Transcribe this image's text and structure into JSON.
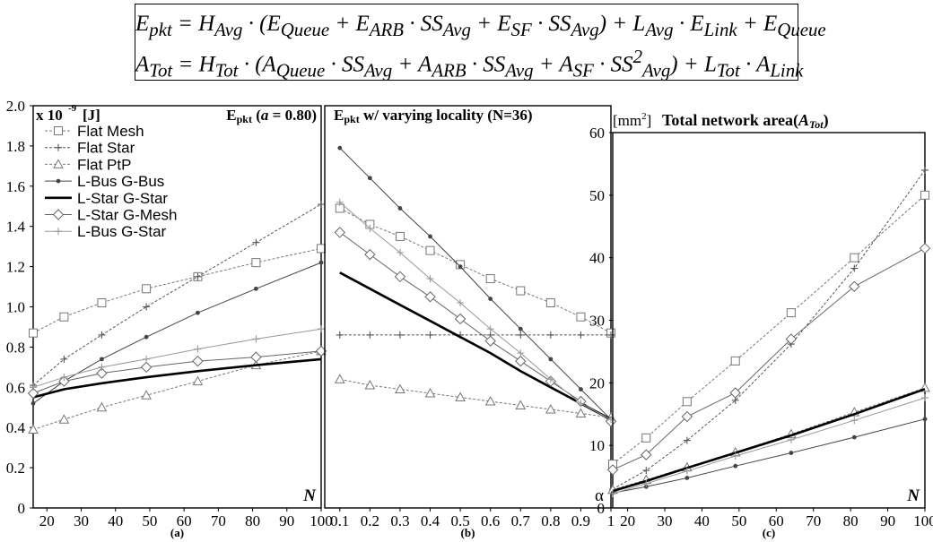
{
  "formulas": [
    "E_pkt = H_Avg · (E_Queue + E_ARB · SS_Avg + E_SF · SS_Avg) + L_Avg · E_Link + E_Queue",
    "A_Tot = H_Tot · (A_Queue · SS_Avg + A_ARB · SS_Avg + A_SF · SS²_Avg) + L_Tot · A_Link"
  ],
  "legend": [
    "Flat Mesh",
    "Flat Star",
    "Flat PtP",
    "L-Bus G-Bus",
    "L-Star G-Star",
    "L-Star G-Mesh",
    "L-Bus G-Star"
  ],
  "chart_data": [
    {
      "type": "line",
      "panel": "(a)",
      "title": "E_pkt (a = 0.80)",
      "ylabel": "x 10^-9 [J]",
      "xlabel": "N",
      "xlim": [
        16,
        100
      ],
      "ylim": [
        0,
        2.0
      ],
      "xticks": [
        20,
        30,
        40,
        50,
        60,
        70,
        80,
        90,
        100
      ],
      "yticks": [
        0,
        0.2,
        0.4,
        0.6,
        0.8,
        1.0,
        1.2,
        1.4,
        1.6,
        1.8,
        2.0
      ],
      "x": [
        16,
        25,
        36,
        49,
        64,
        81,
        100
      ],
      "legend_position": "top-left",
      "series": [
        {
          "name": "Flat Mesh",
          "values": [
            0.87,
            0.95,
            1.02,
            1.09,
            1.15,
            1.22,
            1.29
          ]
        },
        {
          "name": "Flat Star",
          "values": [
            0.61,
            0.74,
            0.86,
            1.0,
            1.15,
            1.32,
            1.51
          ]
        },
        {
          "name": "Flat PtP",
          "values": [
            0.39,
            0.44,
            0.5,
            0.56,
            0.63,
            0.71,
            0.78
          ]
        },
        {
          "name": "L-Bus G-Bus",
          "values": [
            0.52,
            0.63,
            0.74,
            0.85,
            0.97,
            1.09,
            1.22
          ]
        },
        {
          "name": "L-Star G-Star",
          "values": [
            0.55,
            0.59,
            0.62,
            0.65,
            0.68,
            0.71,
            0.74
          ]
        },
        {
          "name": "L-Star G-Mesh",
          "values": [
            0.57,
            0.63,
            0.67,
            0.7,
            0.73,
            0.75,
            0.78
          ]
        },
        {
          "name": "L-Bus G-Star",
          "values": [
            0.6,
            0.65,
            0.7,
            0.74,
            0.79,
            0.84,
            0.89
          ]
        }
      ]
    },
    {
      "type": "line",
      "panel": "(b)",
      "title": "E_pkt w/ varying locality (N=36)",
      "xlabel": "α",
      "xlim": [
        0.05,
        1.0
      ],
      "ylim": [
        0,
        2.0
      ],
      "xticks": [
        0.1,
        0.2,
        0.3,
        0.4,
        0.5,
        0.6,
        0.7,
        0.8,
        0.9,
        1
      ],
      "x": [
        0.1,
        0.2,
        0.3,
        0.4,
        0.5,
        0.6,
        0.7,
        0.8,
        0.9,
        1.0
      ],
      "series": [
        {
          "name": "Flat Mesh",
          "values": [
            1.49,
            1.41,
            1.35,
            1.28,
            1.21,
            1.14,
            1.08,
            1.02,
            0.95,
            0.87
          ]
        },
        {
          "name": "Flat Star",
          "values": [
            0.86,
            0.86,
            0.86,
            0.86,
            0.86,
            0.86,
            0.86,
            0.86,
            0.86,
            0.86
          ]
        },
        {
          "name": "Flat PtP",
          "values": [
            0.64,
            0.61,
            0.59,
            0.57,
            0.55,
            0.53,
            0.51,
            0.49,
            0.47,
            0.45
          ]
        },
        {
          "name": "L-Bus G-Bus",
          "values": [
            1.79,
            1.64,
            1.49,
            1.35,
            1.2,
            1.04,
            0.89,
            0.74,
            0.59,
            0.44
          ]
        },
        {
          "name": "L-Star G-Star",
          "values": [
            1.17,
            1.09,
            1.01,
            0.93,
            0.85,
            0.77,
            0.68,
            0.6,
            0.52,
            0.44
          ]
        },
        {
          "name": "L-Star G-Mesh",
          "values": [
            1.37,
            1.26,
            1.15,
            1.05,
            0.94,
            0.83,
            0.73,
            0.63,
            0.53,
            0.43
          ]
        },
        {
          "name": "L-Bus G-Star",
          "values": [
            1.52,
            1.39,
            1.27,
            1.14,
            1.02,
            0.89,
            0.77,
            0.64,
            0.52,
            0.44
          ]
        }
      ]
    },
    {
      "type": "line",
      "panel": "(c)",
      "title": "Total network area(A_Tot)",
      "ylabel": "[mm²]",
      "xlabel": "N",
      "xlim": [
        16,
        100
      ],
      "ylim": [
        0,
        60
      ],
      "xticks": [
        20,
        30,
        40,
        50,
        60,
        70,
        80,
        90,
        100
      ],
      "yticks": [
        0,
        10,
        20,
        30,
        40,
        50,
        60
      ],
      "x": [
        16,
        25,
        36,
        49,
        64,
        81,
        100
      ],
      "series": [
        {
          "name": "Flat Mesh",
          "values": [
            7.0,
            11.2,
            17.0,
            23.5,
            31.2,
            40.0,
            50.0
          ]
        },
        {
          "name": "Flat Star",
          "values": [
            3.0,
            6.0,
            10.8,
            17.2,
            26.2,
            38.3,
            54.0
          ]
        },
        {
          "name": "Flat PtP",
          "values": [
            2.9,
            4.5,
            6.5,
            8.9,
            11.8,
            15.3,
            19.2
          ]
        },
        {
          "name": "L-Bus G-Bus",
          "values": [
            2.4,
            3.4,
            4.8,
            6.7,
            8.8,
            11.3,
            14.2
          ]
        },
        {
          "name": "L-Star G-Star",
          "values": [
            2.7,
            4.3,
            6.4,
            8.8,
            11.6,
            15.0,
            19.0
          ]
        },
        {
          "name": "L-Star G-Mesh",
          "values": [
            6.1,
            8.5,
            14.6,
            18.4,
            27.0,
            35.4,
            41.5
          ]
        },
        {
          "name": "L-Bus G-Star",
          "values": [
            2.3,
            3.9,
            5.9,
            8.3,
            10.9,
            14.0,
            17.6
          ]
        }
      ]
    }
  ]
}
